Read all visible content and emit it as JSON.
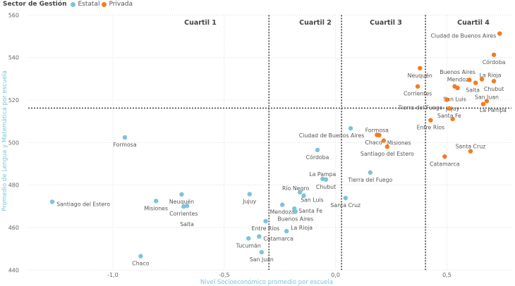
{
  "chart_data": {
    "type": "scatter",
    "legend": {
      "title": "Sector de Gestión",
      "placement": "top-left"
    },
    "xlabel": "Nivel Socioeconómico promedio por escuela",
    "ylabel": "Promedio de Lengua y Matemática por escuela",
    "xlim": [
      -1.38,
      0.79
    ],
    "ylim": [
      440,
      560
    ],
    "xticks": [
      {
        "v": -1.0,
        "label": "-1,0"
      },
      {
        "v": -0.5,
        "label": "-0,5"
      },
      {
        "v": 0.0,
        "label": "0,0"
      },
      {
        "v": 0.5,
        "label": "0,5"
      }
    ],
    "yticks": [
      440,
      460,
      480,
      500,
      520,
      540,
      560
    ],
    "grid": true,
    "quadrant_lines": {
      "x": [
        -0.299,
        0.027,
        0.404
      ],
      "y": 516.2
    },
    "quartiles": [
      "Cuartil 1",
      "Cuartil 2",
      "Cuartil 3",
      "Cuartil 4"
    ],
    "series": [
      {
        "name": "Estatal",
        "color": "#7cc4d6",
        "points": [
          {
            "label": "Formosa",
            "x": -0.946,
            "y": 502.4
          },
          {
            "label": "Santiago del Estero",
            "x": -1.272,
            "y": 472.1
          },
          {
            "label": "Chaco",
            "x": -0.875,
            "y": 446.5
          },
          {
            "label": "Misiones",
            "x": -0.806,
            "y": 472.5
          },
          {
            "label": "Neuquén",
            "x": -0.691,
            "y": 475.6
          },
          {
            "label": "Corrientes",
            "x": -0.682,
            "y": 469.9
          },
          {
            "label": "Salta",
            "x": -0.667,
            "y": 470.2
          },
          {
            "label": "Jujuy",
            "x": -0.386,
            "y": 475.7
          },
          {
            "label": "Río Negro",
            "x": -0.16,
            "y": 476.6
          },
          {
            "label": "San Luis",
            "x": -0.143,
            "y": 475.0
          },
          {
            "label": "Mendoza",
            "x": -0.239,
            "y": 470.7
          },
          {
            "label": "Santa Fe",
            "x": -0.185,
            "y": 468.9
          },
          {
            "label": "Buenos Aires",
            "x": -0.18,
            "y": 467.5
          },
          {
            "label": "Entre Ríos",
            "x": -0.314,
            "y": 463.0
          },
          {
            "label": "Tucumán",
            "x": -0.391,
            "y": 454.9
          },
          {
            "label": "Catamarca",
            "x": -0.343,
            "y": 455.8
          },
          {
            "label": "La Rioja",
            "x": -0.22,
            "y": 458.3
          },
          {
            "label": "San Juan",
            "x": -0.332,
            "y": 448.4
          },
          {
            "label": "La Pampa",
            "x": -0.058,
            "y": 482.9
          },
          {
            "label": "Chubut",
            "x": -0.043,
            "y": 482.6
          },
          {
            "label": "Santa Cruz",
            "x": 0.045,
            "y": 473.9
          },
          {
            "label": "Tierra del Fuego",
            "x": 0.156,
            "y": 485.9
          },
          {
            "label": "Córdoba",
            "x": -0.081,
            "y": 496.5
          },
          {
            "label": "Ciudad de Buenos Aires",
            "x": 0.068,
            "y": 506.7
          }
        ]
      },
      {
        "name": "Privada",
        "color": "#f47b20",
        "points": [
          {
            "label": "Formosa",
            "x": 0.186,
            "y": 503.6
          },
          {
            "label": "Chaco",
            "x": 0.196,
            "y": 503.5
          },
          {
            "label": "Misiones",
            "x": 0.216,
            "y": 500.9
          },
          {
            "label": "Santiago del Estero",
            "x": 0.232,
            "y": 498.1
          },
          {
            "label": "Entre Ríos",
            "x": 0.427,
            "y": 510.5
          },
          {
            "label": "Santa Fe",
            "x": 0.511,
            "y": 516.0
          },
          {
            "label": "Jujuy",
            "x": 0.526,
            "y": 511.1
          },
          {
            "label": "Santa Cruz",
            "x": 0.606,
            "y": 495.9
          },
          {
            "label": "Catamarca",
            "x": 0.49,
            "y": 493.4
          },
          {
            "label": "Ciudad de Buenos Aires",
            "x": 0.737,
            "y": 551.3
          },
          {
            "label": "Córdoba",
            "x": 0.711,
            "y": 541.3
          },
          {
            "label": "Neuquén",
            "x": 0.379,
            "y": 535.0
          },
          {
            "label": "Corrientes",
            "x": 0.369,
            "y": 526.4
          },
          {
            "label": "La Rioja",
            "x": 0.657,
            "y": 529.8
          },
          {
            "label": "Chubut",
            "x": 0.711,
            "y": 528.9
          },
          {
            "label": "Mendoza",
            "x": 0.601,
            "y": 529.5
          },
          {
            "label": "Salta",
            "x": 0.629,
            "y": 528.1
          },
          {
            "label": "San Luis",
            "x": 0.535,
            "y": 526.4
          },
          {
            "label": "Buenos Aires",
            "x": 0.548,
            "y": 525.7
          },
          {
            "label": "San Juan",
            "x": 0.679,
            "y": 519.5
          },
          {
            "label": "La Pampa",
            "x": 0.663,
            "y": 518.1
          },
          {
            "label": "Tierra del Fuego",
            "x": 0.5,
            "y": 520.2
          }
        ]
      }
    ]
  }
}
